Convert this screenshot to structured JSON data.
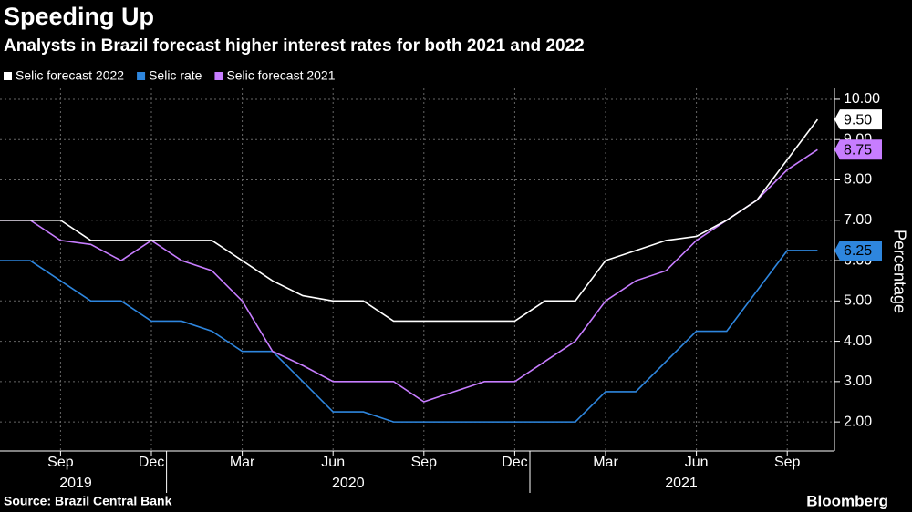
{
  "chart_data": {
    "type": "line",
    "title": "Speeding Up",
    "subtitle": "Analysts in Brazil forecast higher interest rates for both 2021 and 2022",
    "source": "Source: Brazil Central Bank",
    "brand": "Bloomberg",
    "y_axis_label": "Percentage",
    "x": [
      "2019-07",
      "2019-08",
      "2019-09",
      "2019-10",
      "2019-11",
      "2019-12",
      "2020-01",
      "2020-02",
      "2020-03",
      "2020-04",
      "2020-05",
      "2020-06",
      "2020-07",
      "2020-08",
      "2020-09",
      "2020-10",
      "2020-11",
      "2020-12",
      "2021-01",
      "2021-02",
      "2021-03",
      "2021-04",
      "2021-05",
      "2021-06",
      "2021-07",
      "2021-08",
      "2021-09",
      "2021-10"
    ],
    "series": [
      {
        "name": "Selic forecast 2022",
        "color": "#ffffff",
        "last_label": "9.50",
        "values": [
          7.0,
          7.0,
          7.0,
          6.5,
          6.5,
          6.5,
          6.5,
          6.5,
          6.0,
          5.5,
          5.13,
          5.0,
          5.0,
          4.5,
          4.5,
          4.5,
          4.5,
          4.5,
          5.0,
          5.0,
          6.0,
          6.25,
          6.5,
          6.6,
          7.0,
          7.5,
          8.5,
          9.5
        ]
      },
      {
        "name": "Selic rate",
        "color": "#2e86de",
        "last_label": "6.25",
        "values": [
          6.0,
          6.0,
          5.5,
          5.0,
          5.0,
          4.5,
          4.5,
          4.25,
          3.75,
          3.75,
          3.0,
          2.25,
          2.25,
          2.0,
          2.0,
          2.0,
          2.0,
          2.0,
          2.0,
          2.0,
          2.75,
          2.75,
          3.5,
          4.25,
          4.25,
          5.25,
          6.25,
          6.25
        ]
      },
      {
        "name": "Selic forecast 2021",
        "color": "#c77dff",
        "last_label": "8.75",
        "values": [
          7.0,
          7.0,
          6.5,
          6.4,
          6.0,
          6.5,
          6.0,
          5.75,
          5.0,
          3.75,
          3.4,
          3.0,
          3.0,
          3.0,
          2.5,
          2.75,
          3.0,
          3.0,
          3.5,
          4.0,
          5.0,
          5.5,
          5.75,
          6.5,
          7.0,
          7.5,
          8.25,
          8.75
        ]
      }
    ],
    "ylim": [
      1.28,
      10.27
    ],
    "yticks": [
      {
        "value": 2,
        "label": "2.00"
      },
      {
        "value": 3,
        "label": "3.00"
      },
      {
        "value": 4,
        "label": "4.00"
      },
      {
        "value": 5,
        "label": "5.00"
      },
      {
        "value": 6,
        "label": "6.00"
      },
      {
        "value": 7,
        "label": "7.00"
      },
      {
        "value": 8,
        "label": "8.00"
      },
      {
        "value": 9,
        "label": "9.00"
      },
      {
        "value": 10,
        "label": "10.00"
      }
    ],
    "xticks": [
      {
        "value": "2019-09",
        "label": "Sep"
      },
      {
        "value": "2019-12",
        "label": "Dec"
      },
      {
        "value": "2020-03",
        "label": "Mar"
      },
      {
        "value": "2020-06",
        "label": "Jun"
      },
      {
        "value": "2020-09",
        "label": "Sep"
      },
      {
        "value": "2020-12",
        "label": "Dec"
      },
      {
        "value": "2021-03",
        "label": "Mar"
      },
      {
        "value": "2021-06",
        "label": "Jun"
      },
      {
        "value": "2021-09",
        "label": "Sep"
      }
    ],
    "year_labels": [
      "2019",
      "2020",
      "2021"
    ],
    "grid": true
  }
}
